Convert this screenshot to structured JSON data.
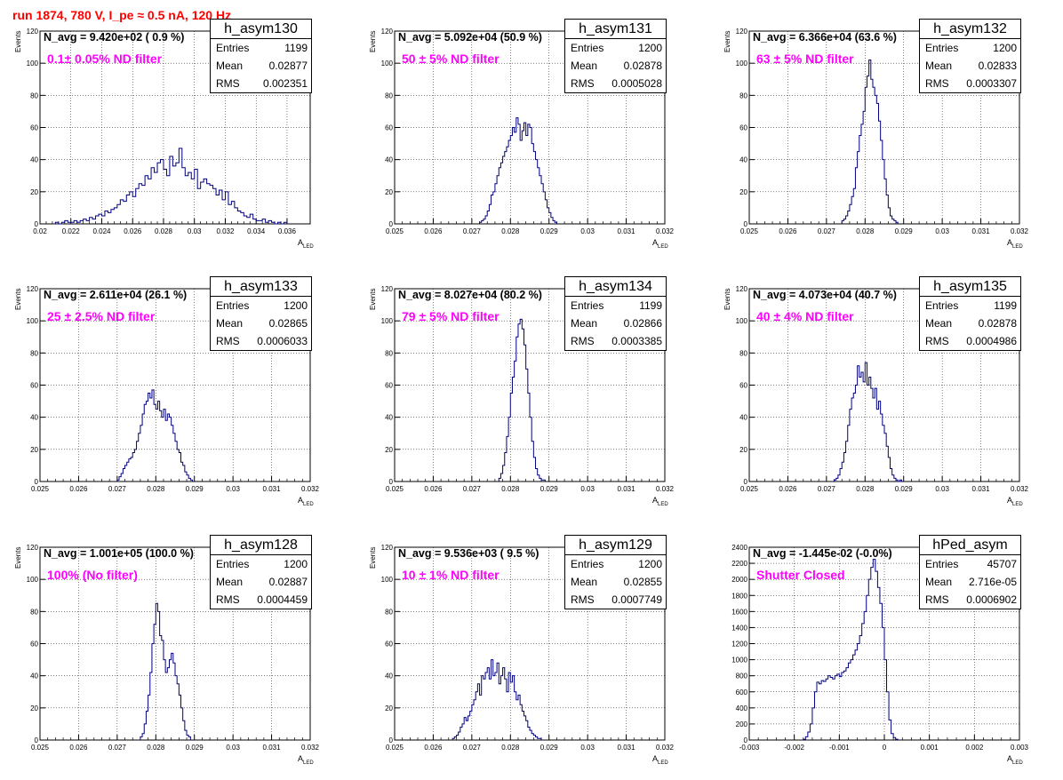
{
  "title": "run 1874,   780 V, I_pe ≈ 0.5 nA, 120 Hz",
  "chart_data": [
    {
      "type": "histogram",
      "name": "h_asym130",
      "navg": "N_avg = 9.420e+02 ( 0.9 %)",
      "filter": "0.1± 0.05% ND filter",
      "stats": {
        "Entries": "1199",
        "Mean": "0.02877",
        "RMS": "0.002351"
      },
      "xlabel": "A",
      "xlabel_sub": "LED",
      "ylabel": "Events",
      "xlim": [
        0.02,
        0.0375
      ],
      "ylim": [
        0,
        120
      ],
      "xticks": [
        "0.02",
        "0.022",
        "0.024",
        "0.026",
        "0.028",
        "0.03",
        "0.032",
        "0.034",
        "0.036"
      ],
      "xtick_vals": [
        0.02,
        0.022,
        0.024,
        0.026,
        0.028,
        0.03,
        0.032,
        0.034,
        0.036
      ],
      "yticks": [
        "0",
        "20",
        "40",
        "60",
        "80",
        "100",
        "120"
      ],
      "ytick_vals": [
        0,
        20,
        40,
        60,
        80,
        100,
        120
      ],
      "bin_start": 0.021,
      "bin_width": 0.0002,
      "values": [
        1,
        0,
        1,
        2,
        1,
        1,
        2,
        1,
        2,
        3,
        2,
        4,
        3,
        5,
        6,
        5,
        8,
        7,
        9,
        10,
        12,
        15,
        14,
        18,
        20,
        17,
        22,
        25,
        24,
        30,
        28,
        35,
        32,
        38,
        40,
        34,
        30,
        42,
        36,
        38,
        47,
        35,
        30,
        32,
        28,
        34,
        22,
        26,
        28,
        25,
        24,
        22,
        18,
        21,
        15,
        20,
        12,
        14,
        10,
        8,
        7,
        5,
        4,
        6,
        3,
        2,
        2,
        3,
        1,
        2,
        1,
        0,
        1,
        0,
        1
      ]
    },
    {
      "type": "histogram",
      "name": "h_asym131",
      "navg": "N_avg = 5.092e+04 (50.9 %)",
      "filter": "50 ± 5% ND filter",
      "stats": {
        "Entries": "1200",
        "Mean": "0.02878",
        "RMS": "0.0005028"
      },
      "xlabel": "A",
      "xlabel_sub": "LED",
      "ylabel": "Events",
      "xlim": [
        0.025,
        0.032
      ],
      "ylim": [
        0,
        120
      ],
      "xticks": [
        "0.025",
        "0.026",
        "0.027",
        "0.028",
        "0.029",
        "0.03",
        "0.031",
        "0.032"
      ],
      "xtick_vals": [
        0.025,
        0.026,
        0.027,
        0.028,
        0.029,
        0.03,
        0.031,
        0.032
      ],
      "yticks": [
        "0",
        "20",
        "40",
        "60",
        "80",
        "100",
        "120"
      ],
      "ytick_vals": [
        0,
        20,
        40,
        60,
        80,
        100,
        120
      ],
      "bin_start": 0.0272,
      "bin_width": 5e-05,
      "values": [
        1,
        2,
        3,
        5,
        8,
        12,
        18,
        20,
        25,
        30,
        35,
        38,
        42,
        45,
        48,
        52,
        55,
        60,
        57,
        66,
        62,
        52,
        58,
        63,
        55,
        62,
        60,
        50,
        45,
        40,
        35,
        30,
        25,
        20,
        15,
        10,
        7,
        4,
        2,
        1
      ]
    },
    {
      "type": "histogram",
      "name": "h_asym132",
      "navg": "N_avg = 6.366e+04 (63.6 %)",
      "filter": "63 ± 5% ND filter",
      "stats": {
        "Entries": "1200",
        "Mean": "0.02833",
        "RMS": "0.0003307"
      },
      "xlabel": "A",
      "xlabel_sub": "LED",
      "ylabel": "Events",
      "xlim": [
        0.025,
        0.032
      ],
      "ylim": [
        0,
        120
      ],
      "xticks": [
        "0.025",
        "0.026",
        "0.027",
        "0.028",
        "0.029",
        "0.03",
        "0.031",
        "0.032"
      ],
      "xtick_vals": [
        0.025,
        0.026,
        0.027,
        0.028,
        0.029,
        0.03,
        0.031,
        0.032
      ],
      "yticks": [
        "0",
        "20",
        "40",
        "60",
        "80",
        "100",
        "120"
      ],
      "ytick_vals": [
        0,
        20,
        40,
        60,
        80,
        100,
        120
      ],
      "bin_start": 0.0274,
      "bin_width": 5e-05,
      "values": [
        2,
        3,
        5,
        8,
        12,
        17,
        22,
        35,
        45,
        55,
        62,
        70,
        85,
        92,
        102,
        90,
        85,
        80,
        75,
        64,
        52,
        40,
        28,
        18,
        10,
        5,
        3,
        2,
        1
      ]
    },
    {
      "type": "histogram",
      "name": "h_asym133",
      "navg": "N_avg = 2.611e+04 (26.1 %)",
      "filter": "25 ± 2.5% ND filter",
      "stats": {
        "Entries": "1200",
        "Mean": "0.02865",
        "RMS": "0.0006033"
      },
      "xlabel": "A",
      "xlabel_sub": "LED",
      "ylabel": "Events",
      "xlim": [
        0.025,
        0.032
      ],
      "ylim": [
        0,
        120
      ],
      "xticks": [
        "0.025",
        "0.026",
        "0.027",
        "0.028",
        "0.029",
        "0.03",
        "0.031",
        "0.032"
      ],
      "xtick_vals": [
        0.025,
        0.026,
        0.027,
        0.028,
        0.029,
        0.03,
        0.031,
        0.032
      ],
      "yticks": [
        "0",
        "20",
        "40",
        "60",
        "80",
        "100",
        "120"
      ],
      "ytick_vals": [
        0,
        20,
        40,
        60,
        80,
        100,
        120
      ],
      "bin_start": 0.027,
      "bin_width": 5e-05,
      "values": [
        1,
        3,
        5,
        8,
        10,
        12,
        14,
        15,
        18,
        20,
        25,
        30,
        35,
        42,
        48,
        50,
        55,
        52,
        57,
        48,
        45,
        50,
        44,
        40,
        45,
        38,
        42,
        40,
        35,
        30,
        25,
        20,
        18,
        12,
        10,
        6,
        4,
        2,
        1
      ]
    },
    {
      "type": "histogram",
      "name": "h_asym134",
      "navg": "N_avg = 8.027e+04 (80.2 %)",
      "filter": "79 ± 5% ND filter",
      "stats": {
        "Entries": "1199",
        "Mean": "0.02866",
        "RMS": "0.0003385"
      },
      "xlabel": "A",
      "xlabel_sub": "LED",
      "ylabel": "Events",
      "xlim": [
        0.025,
        0.032
      ],
      "ylim": [
        0,
        120
      ],
      "xticks": [
        "0.025",
        "0.026",
        "0.027",
        "0.028",
        "0.029",
        "0.03",
        "0.031",
        "0.032"
      ],
      "xtick_vals": [
        0.025,
        0.026,
        0.027,
        0.028,
        0.029,
        0.03,
        0.031,
        0.032
      ],
      "yticks": [
        "0",
        "20",
        "40",
        "60",
        "80",
        "100",
        "120"
      ],
      "ytick_vals": [
        0,
        20,
        40,
        60,
        80,
        100,
        120
      ],
      "bin_start": 0.0277,
      "bin_width": 5e-05,
      "values": [
        2,
        5,
        10,
        18,
        28,
        40,
        55,
        65,
        75,
        90,
        98,
        101,
        95,
        85,
        70,
        55,
        40,
        25,
        15,
        8,
        4,
        2,
        1,
        1
      ]
    },
    {
      "type": "histogram",
      "name": "h_asym135",
      "navg": "N_avg = 4.073e+04 (40.7 %)",
      "filter": "40 ± 4% ND filter",
      "stats": {
        "Entries": "1199",
        "Mean": "0.02878",
        "RMS": "0.0004986"
      },
      "xlabel": "A",
      "xlabel_sub": "LED",
      "ylabel": "Events",
      "xlim": [
        0.025,
        0.032
      ],
      "ylim": [
        0,
        120
      ],
      "xticks": [
        "0.025",
        "0.026",
        "0.027",
        "0.028",
        "0.029",
        "0.03",
        "0.031",
        "0.032"
      ],
      "xtick_vals": [
        0.025,
        0.026,
        0.027,
        0.028,
        0.029,
        0.03,
        0.031,
        0.032
      ],
      "yticks": [
        "0",
        "20",
        "40",
        "60",
        "80",
        "100",
        "120"
      ],
      "ytick_vals": [
        0,
        20,
        40,
        60,
        80,
        100,
        120
      ],
      "bin_start": 0.0272,
      "bin_width": 5e-05,
      "values": [
        1,
        2,
        4,
        8,
        12,
        18,
        25,
        35,
        45,
        52,
        55,
        60,
        72,
        65,
        68,
        62,
        74,
        60,
        65,
        58,
        52,
        58,
        45,
        50,
        42,
        35,
        30,
        22,
        15,
        8,
        4,
        2,
        1,
        0,
        1
      ]
    },
    {
      "type": "histogram",
      "name": "h_asym128",
      "navg": "N_avg = 1.001e+05 (100.0 %)",
      "filter": "100% (No filter)",
      "stats": {
        "Entries": "1200",
        "Mean": "0.02887",
        "RMS": "0.0004459"
      },
      "xlabel": "A",
      "xlabel_sub": "LED",
      "ylabel": "Events",
      "xlim": [
        0.025,
        0.032
      ],
      "ylim": [
        0,
        120
      ],
      "xticks": [
        "0.025",
        "0.026",
        "0.027",
        "0.028",
        "0.029",
        "0.03",
        "0.031",
        "0.032"
      ],
      "xtick_vals": [
        0.025,
        0.026,
        0.027,
        0.028,
        0.029,
        0.03,
        0.031,
        0.032
      ],
      "yticks": [
        "0",
        "20",
        "40",
        "60",
        "80",
        "100",
        "120"
      ],
      "ytick_vals": [
        0,
        20,
        40,
        60,
        80,
        100,
        120
      ],
      "bin_start": 0.0276,
      "bin_width": 5e-05,
      "values": [
        2,
        4,
        10,
        18,
        28,
        42,
        60,
        72,
        85,
        80,
        65,
        62,
        50,
        42,
        45,
        50,
        54,
        48,
        40,
        35,
        28,
        20,
        12,
        6,
        3,
        2
      ]
    },
    {
      "type": "histogram",
      "name": "h_asym129",
      "navg": "N_avg = 9.536e+03 ( 9.5 %)",
      "filter": "10 ± 1% ND filter",
      "stats": {
        "Entries": "1200",
        "Mean": "0.02855",
        "RMS": "0.0007749"
      },
      "xlabel": "A",
      "xlabel_sub": "LED",
      "ylabel": "Events",
      "xlim": [
        0.025,
        0.032
      ],
      "ylim": [
        0,
        120
      ],
      "xticks": [
        "0.025",
        "0.026",
        "0.027",
        "0.028",
        "0.029",
        "0.03",
        "0.031",
        "0.032"
      ],
      "xtick_vals": [
        0.025,
        0.026,
        0.027,
        0.028,
        0.029,
        0.03,
        0.031,
        0.032
      ],
      "yticks": [
        "0",
        "20",
        "40",
        "60",
        "80",
        "100",
        "120"
      ],
      "ytick_vals": [
        0,
        20,
        40,
        60,
        80,
        100,
        120
      ],
      "bin_start": 0.0265,
      "bin_width": 5e-05,
      "values": [
        1,
        2,
        3,
        5,
        8,
        10,
        14,
        12,
        15,
        18,
        22,
        25,
        30,
        35,
        28,
        40,
        38,
        42,
        45,
        38,
        50,
        40,
        42,
        48,
        35,
        40,
        45,
        38,
        30,
        42,
        36,
        40,
        30,
        25,
        28,
        22,
        18,
        15,
        12,
        8,
        6,
        4,
        3,
        2,
        1,
        1
      ]
    },
    {
      "type": "histogram",
      "name": "hPed_asym",
      "navg": "N_avg = -1.445e-02 (-0.0%)",
      "filter": "Shutter Closed",
      "stats": {
        "Entries": "45707",
        "Mean": "2.716e-05",
        "RMS": "0.0006902"
      },
      "xlabel": "A",
      "xlabel_sub": "LED",
      "ylabel": "",
      "xlim": [
        -0.003,
        0.003
      ],
      "ylim": [
        0,
        2400
      ],
      "xticks": [
        "-0.003",
        "-0.002",
        "-0.001",
        "0",
        "0.001",
        "0.002",
        "0.003"
      ],
      "xtick_vals": [
        -0.003,
        -0.002,
        -0.001,
        0,
        0.001,
        0.002,
        0.003
      ],
      "yticks": [
        "0",
        "200",
        "400",
        "600",
        "800",
        "1000",
        "1200",
        "1400",
        "1600",
        "1800",
        "2000",
        "2200",
        "2400"
      ],
      "ytick_vals": [
        0,
        200,
        400,
        600,
        800,
        1000,
        1200,
        1400,
        1600,
        1800,
        2000,
        2200,
        2400
      ],
      "bin_start": -0.0018,
      "bin_width": 5e-05,
      "values": [
        10,
        40,
        100,
        200,
        400,
        600,
        720,
        700,
        740,
        730,
        760,
        800,
        780,
        760,
        800,
        820,
        790,
        840,
        860,
        900,
        960,
        1000,
        1060,
        1120,
        1200,
        1300,
        1450,
        1600,
        1800,
        2000,
        2150,
        2250,
        2100,
        1900,
        1700,
        1400,
        1000,
        600,
        250,
        80,
        30,
        10
      ]
    }
  ]
}
